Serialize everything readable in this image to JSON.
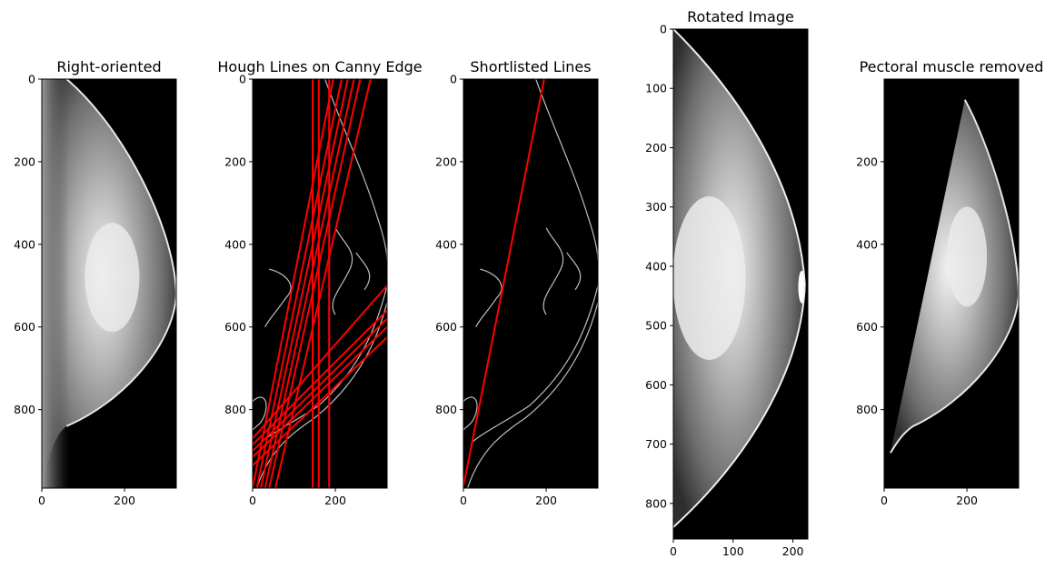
{
  "chart_data": [
    {
      "type": "image",
      "title": "Right-oriented",
      "xlim": [
        0,
        325
      ],
      "ylim": [
        990,
        0
      ],
      "xticks": [
        0,
        200
      ],
      "yticks": [
        0,
        200,
        400,
        600,
        800
      ],
      "content": "breast-left"
    },
    {
      "type": "image",
      "title": "Hough Lines on Canny Edge",
      "xlim": [
        0,
        325
      ],
      "ylim": [
        990,
        0
      ],
      "xticks": [
        0,
        200
      ],
      "yticks": [
        0,
        200,
        400,
        600,
        800
      ],
      "content": "edges",
      "line_color": "#ff0000",
      "lines": [
        {
          "x1": 145,
          "y1": 0,
          "x2": 145,
          "y2": 990
        },
        {
          "x1": 160,
          "y1": 0,
          "x2": 160,
          "y2": 990
        },
        {
          "x1": 185,
          "y1": 0,
          "x2": 185,
          "y2": 990
        },
        {
          "x1": 0,
          "y1": 990,
          "x2": 195,
          "y2": 0
        },
        {
          "x1": 10,
          "y1": 990,
          "x2": 215,
          "y2": 0
        },
        {
          "x1": 20,
          "y1": 990,
          "x2": 230,
          "y2": 0
        },
        {
          "x1": 30,
          "y1": 990,
          "x2": 245,
          "y2": 0
        },
        {
          "x1": 40,
          "y1": 990,
          "x2": 260,
          "y2": 0
        },
        {
          "x1": 55,
          "y1": 990,
          "x2": 285,
          "y2": 0
        },
        {
          "x1": 0,
          "y1": 870,
          "x2": 325,
          "y2": 500
        },
        {
          "x1": 0,
          "y1": 885,
          "x2": 325,
          "y2": 560
        },
        {
          "x1": 0,
          "y1": 900,
          "x2": 325,
          "y2": 580
        },
        {
          "x1": 0,
          "y1": 915,
          "x2": 325,
          "y2": 600
        },
        {
          "x1": 0,
          "y1": 935,
          "x2": 325,
          "y2": 625
        }
      ]
    },
    {
      "type": "image",
      "title": "Shortlisted Lines",
      "xlim": [
        0,
        325
      ],
      "ylim": [
        990,
        0
      ],
      "xticks": [
        0,
        200
      ],
      "yticks": [
        0,
        200,
        400,
        600,
        800
      ],
      "content": "edges",
      "line_color": "#ff0000",
      "lines": [
        {
          "x1": 0,
          "y1": 985,
          "x2": 195,
          "y2": 0
        }
      ]
    },
    {
      "type": "image",
      "title": "Rotated Image",
      "xlim": [
        0,
        225
      ],
      "ylim": [
        860,
        0
      ],
      "xticks": [
        0,
        100,
        200
      ],
      "yticks": [
        0,
        100,
        200,
        300,
        400,
        500,
        600,
        700,
        800
      ],
      "content": "breast-rotated"
    },
    {
      "type": "image",
      "title": "Pectoral muscle removed",
      "xlim": [
        0,
        325
      ],
      "ylim": [
        990,
        0
      ],
      "xticks": [
        0,
        200
      ],
      "yticks": [
        200,
        400,
        600,
        800
      ],
      "content": "breast-cut"
    }
  ]
}
